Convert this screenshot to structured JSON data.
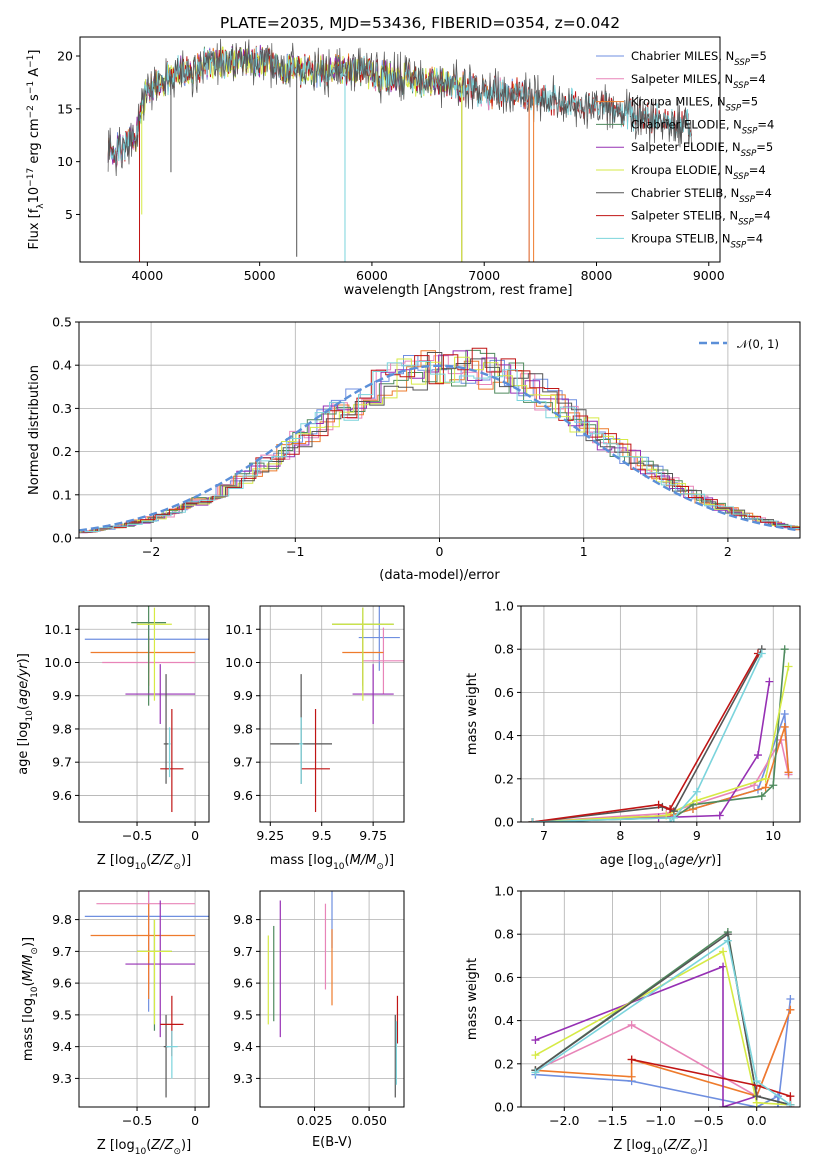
{
  "colors": [
    "#6f8fe0",
    "#e884b8",
    "#ee7b2c",
    "#4f8a5e",
    "#9630b4",
    "#d6ea45",
    "#555555",
    "#c01515",
    "#7bd4dc"
  ],
  "chart_data": [
    {
      "id": "spectrum",
      "type": "line",
      "title": "PLATE=2035, MJD=53436, FIBERID=0354, z=0.042",
      "xlabel": "wavelength [Angstrom, rest frame]",
      "ylabel": "Flux [f_λ10^-17 erg cm^-2 s^-1 A^-1]",
      "xlim": [
        3400,
        9100
      ],
      "ylim": [
        0.5,
        21.8
      ],
      "xticks": [
        4000,
        5000,
        6000,
        7000,
        8000,
        9000
      ],
      "yticks": [
        5,
        10,
        15,
        20
      ],
      "grid": false,
      "legend_position": "right",
      "series": [
        {
          "name": "Chabrier MILES, N_SSP=5",
          "xrange": [
            3650,
            7400
          ]
        },
        {
          "name": "Salpeter MILES, N_SSP=4",
          "xrange": [
            3650,
            7400
          ]
        },
        {
          "name": "Kroupa MILES, N_SSP=5",
          "xrange": [
            3650,
            7400
          ]
        },
        {
          "name": "Chabrier ELODIE, N_SSP=4",
          "xrange": [
            3650,
            6800
          ]
        },
        {
          "name": "Salpeter ELODIE, N_SSP=5",
          "xrange": [
            3650,
            6800
          ]
        },
        {
          "name": "Kroupa ELODIE, N_SSP=4",
          "xrange": [
            3900,
            6800
          ]
        },
        {
          "name": "Chabrier STELIB, N_SSP=4",
          "xrange": [
            3650,
            8850
          ]
        },
        {
          "name": "Salpeter STELIB, N_SSP=4",
          "xrange": [
            3650,
            8850
          ]
        },
        {
          "name": "Kroupa STELIB, N_SSP=4",
          "xrange": [
            3650,
            8850
          ]
        }
      ],
      "continuum": {
        "x": [
          3650,
          3700,
          3800,
          3900,
          4000,
          4100,
          4200,
          4300,
          4400,
          4500,
          4700,
          5000,
          5200,
          5500,
          5800,
          6000,
          6300,
          6500,
          6700,
          7000,
          7300,
          7500,
          7800,
          8000,
          8300,
          8500,
          8850
        ],
        "y": [
          11.5,
          11.0,
          11.5,
          12.5,
          17.0,
          17.5,
          18.0,
          18.8,
          18.5,
          19.3,
          19.5,
          19.5,
          18.8,
          18.5,
          18.8,
          18.2,
          17.8,
          17.5,
          17.5,
          16.5,
          16.5,
          16.0,
          15.5,
          15.3,
          14.5,
          14.0,
          13.5
        ]
      }
    },
    {
      "id": "residuals",
      "type": "step",
      "xlabel": "(data-model)/error",
      "ylabel": "Normed distribution",
      "xlim": [
        -2.5,
        2.5
      ],
      "ylim": [
        0,
        0.5
      ],
      "xticks": [
        -2,
        -1,
        0,
        1,
        2
      ],
      "yticks": [
        0,
        0.1,
        0.2,
        0.3,
        0.4,
        0.5
      ],
      "grid": true,
      "legend_position": "top-right",
      "reference": {
        "name": "𝒩(0, 1)",
        "mu": 0,
        "sigma": 1
      },
      "bin_width": 0.1
    },
    {
      "id": "age-vs-Z",
      "type": "errorbar",
      "xlabel": "Z [log10(Z/Z⊙)]",
      "ylabel": "age [log10(age/yr)]",
      "xlim": [
        -1.0,
        0.12
      ],
      "ylim": [
        9.52,
        10.17
      ],
      "xticks": [
        -0.5,
        0.0
      ],
      "yticks": [
        9.6,
        9.7,
        9.8,
        9.9,
        10.0,
        10.1
      ],
      "grid": true,
      "points": [
        {
          "x": -0.4,
          "xerr": [
            0.55,
            0.55
          ],
          "y": 10.07,
          "yerr": [
            0.1,
            0.05
          ]
        },
        {
          "x": -0.4,
          "xerr": [
            0.4,
            0.4
          ],
          "y": 10.0,
          "yerr": [
            0.1,
            0.05
          ]
        },
        {
          "x": -0.4,
          "xerr": [
            0.5,
            0.4
          ],
          "y": 10.03,
          "yerr": [
            0.1,
            0.05
          ]
        },
        {
          "x": -0.4,
          "xerr": [
            0.15,
            0.15
          ],
          "y": 10.12,
          "yerr": [
            0.25,
            0.05
          ]
        },
        {
          "x": -0.3,
          "xerr": [
            0.3,
            0.3
          ],
          "y": 9.905,
          "yerr": [
            0.09,
            0.09
          ]
        },
        {
          "x": -0.35,
          "xerr": [
            0.15,
            0.15
          ],
          "y": 10.115,
          "yerr": [
            0.23,
            0.05
          ]
        },
        {
          "x": -0.25,
          "xerr": [
            0.02,
            0.02
          ],
          "y": 9.755,
          "yerr": [
            0.12,
            0.21
          ]
        },
        {
          "x": -0.2,
          "xerr": [
            0.1,
            0.1
          ],
          "y": 9.68,
          "yerr": [
            0.13,
            0.18
          ]
        },
        {
          "x": -0.22,
          "xerr": [
            0.01,
            0.01
          ],
          "y": 9.755,
          "yerr": [
            0.1,
            0.05
          ]
        }
      ]
    },
    {
      "id": "age-vs-mass",
      "type": "errorbar",
      "xlabel": "mass [log10(M/M⊙)]",
      "ylabel": "",
      "xlim": [
        9.2,
        9.9
      ],
      "ylim": [
        9.52,
        10.17
      ],
      "xticks": [
        9.25,
        9.5,
        9.75
      ],
      "yticks": [
        9.6,
        9.7,
        9.8,
        9.9,
        10.0,
        10.1
      ],
      "grid": true,
      "points": [
        {
          "x": 9.78,
          "xerr": [
            0.1,
            0.1
          ],
          "y": 10.075,
          "yerr": [
            0.1,
            0.1
          ]
        },
        {
          "x": 9.8,
          "xerr": [
            0.1,
            0.1
          ],
          "y": 10.005,
          "yerr": [
            0.1,
            0.1
          ]
        },
        {
          "x": 9.7,
          "xerr": [
            0.1,
            0.1
          ],
          "y": 10.03,
          "yerr": [
            0.1,
            0.1
          ]
        },
        {
          "x": 9.7,
          "xerr": [
            0.15,
            0.15
          ],
          "y": 10.115,
          "yerr": [
            0.2,
            0.05
          ]
        },
        {
          "x": 9.75,
          "xerr": [
            0.1,
            0.1
          ],
          "y": 9.905,
          "yerr": [
            0.09,
            0.09
          ]
        },
        {
          "x": 9.7,
          "xerr": [
            0.15,
            0.15
          ],
          "y": 10.115,
          "yerr": [
            0.23,
            0.05
          ]
        },
        {
          "x": 9.4,
          "xerr": [
            0.15,
            0.15
          ],
          "y": 9.755,
          "yerr": [
            0.12,
            0.21
          ]
        },
        {
          "x": 9.47,
          "xerr": [
            0.07,
            0.07
          ],
          "y": 9.68,
          "yerr": [
            0.13,
            0.18
          ]
        },
        {
          "x": 9.4,
          "xerr": [
            0.01,
            0.01
          ],
          "y": 9.755,
          "yerr": [
            0.12,
            0.08
          ]
        }
      ]
    },
    {
      "id": "weight-vs-age",
      "type": "line",
      "xlabel": "age [log10(age/yr)]",
      "ylabel": "mass weight",
      "xlim": [
        6.7,
        10.35
      ],
      "ylim": [
        0,
        1.0
      ],
      "xticks": [
        7,
        8,
        9,
        10
      ],
      "yticks": [
        0,
        0.2,
        0.4,
        0.6,
        0.8,
        1.0
      ],
      "grid": true,
      "series": [
        {
          "x": [
            6.85,
            8.65,
            8.95,
            9.8,
            10.15,
            10.2
          ],
          "y": [
            0,
            0.03,
            0.06,
            0.15,
            0.5,
            0.22
          ]
        },
        {
          "x": [
            6.85,
            8.6,
            8.95,
            9.75,
            10.1,
            10.2
          ],
          "y": [
            0,
            0.04,
            0.08,
            0.17,
            0.38,
            0.22
          ]
        },
        {
          "x": [
            6.85,
            8.65,
            8.95,
            9.9,
            10.15,
            10.2
          ],
          "y": [
            0,
            0.03,
            0.06,
            0.16,
            0.44,
            0.23
          ]
        },
        {
          "x": [
            6.85,
            8.7,
            8.95,
            9.85,
            10.0,
            10.15
          ],
          "y": [
            0,
            0.02,
            0.08,
            0.12,
            0.17,
            0.8
          ]
        },
        {
          "x": [
            6.85,
            8.5,
            9.3,
            9.8,
            9.95
          ],
          "y": [
            0,
            0.02,
            0.03,
            0.31,
            0.65
          ]
        },
        {
          "x": [
            6.85,
            8.6,
            9.0,
            9.9,
            10.2
          ],
          "y": [
            0,
            0.03,
            0.1,
            0.2,
            0.72
          ]
        },
        {
          "x": [
            6.85,
            8.55,
            8.7,
            9.85
          ],
          "y": [
            0,
            0.07,
            0.05,
            0.8
          ]
        },
        {
          "x": [
            6.85,
            8.5,
            8.65,
            9.8
          ],
          "y": [
            0,
            0.08,
            0.06,
            0.78
          ]
        },
        {
          "x": [
            6.85,
            8.7,
            8.65,
            9.0,
            9.85
          ],
          "y": [
            0,
            0.02,
            0.0,
            0.14,
            0.78
          ]
        }
      ]
    },
    {
      "id": "mass-vs-Z",
      "type": "errorbar",
      "xlabel": "Z [log10(Z/Z⊙)]",
      "ylabel": "mass [log10(M/M⊙)]",
      "xlim": [
        -1.0,
        0.12
      ],
      "ylim": [
        9.21,
        9.89
      ],
      "xticks": [
        -0.5,
        0.0
      ],
      "yticks": [
        9.3,
        9.4,
        9.5,
        9.6,
        9.7,
        9.8
      ],
      "grid": true,
      "points": [
        {
          "x": -0.4,
          "xerr": [
            0.55,
            0.55
          ],
          "y": 9.81,
          "yerr": [
            0.3,
            0.1
          ]
        },
        {
          "x": -0.4,
          "xerr": [
            0.45,
            0.4
          ],
          "y": 9.85,
          "yerr": [
            0.27,
            0.1
          ]
        },
        {
          "x": -0.4,
          "xerr": [
            0.5,
            0.4
          ],
          "y": 9.75,
          "yerr": [
            0.2,
            0.1
          ]
        },
        {
          "x": -0.35,
          "xerr": [
            0.15,
            0.15
          ],
          "y": 9.7,
          "yerr": [
            0.25,
            0.1
          ]
        },
        {
          "x": -0.3,
          "xerr": [
            0.3,
            0.3
          ],
          "y": 9.66,
          "yerr": [
            0.23,
            0.2
          ]
        },
        {
          "x": -0.35,
          "xerr": [
            0.15,
            0.15
          ],
          "y": 9.7,
          "yerr": [
            0.23,
            0.1
          ]
        },
        {
          "x": -0.25,
          "xerr": [
            0.02,
            0.02
          ],
          "y": 9.4,
          "yerr": [
            0.16,
            0.1
          ]
        },
        {
          "x": -0.2,
          "xerr": [
            0.1,
            0.1
          ],
          "y": 9.47,
          "yerr": [
            0.1,
            0.09
          ]
        },
        {
          "x": -0.2,
          "xerr": [
            0.05,
            0.05
          ],
          "y": 9.4,
          "yerr": [
            0.1,
            0.05
          ]
        }
      ]
    },
    {
      "id": "mass-vs-ebv",
      "type": "errorbar",
      "xlabel": "E(B-V)",
      "ylabel": "",
      "xlim": [
        0.0,
        0.066
      ],
      "ylim": [
        9.21,
        9.89
      ],
      "xticks": [
        0.025,
        0.05
      ],
      "xticklabels": [
        "0.025",
        "0.050"
      ],
      "yticks": [
        9.3,
        9.4,
        9.5,
        9.6,
        9.7,
        9.8
      ],
      "grid": true,
      "points": [
        {
          "x": 0.033,
          "y": 9.81,
          "yerr": [
            0.1,
            0.1
          ]
        },
        {
          "x": 0.03,
          "y": 9.72,
          "yerr": [
            0.14,
            0.13
          ]
        },
        {
          "x": 0.033,
          "y": 9.65,
          "yerr": [
            0.12,
            0.12
          ]
        },
        {
          "x": 0.0063,
          "y": 9.7,
          "yerr": [
            0.22,
            0.08
          ]
        },
        {
          "x": 0.0093,
          "y": 9.66,
          "yerr": [
            0.23,
            0.2
          ]
        },
        {
          "x": 0.0038,
          "y": 9.6,
          "yerr": [
            0.13,
            0.15
          ]
        },
        {
          "x": 0.062,
          "y": 9.4,
          "yerr": [
            0.16,
            0.1
          ]
        },
        {
          "x": 0.063,
          "y": 9.48,
          "yerr": [
            0.07,
            0.08
          ]
        },
        {
          "x": 0.0625,
          "y": 9.38,
          "yerr": [
            0.1,
            0.1
          ]
        }
      ]
    },
    {
      "id": "weight-vs-Z",
      "type": "line",
      "xlabel": "Z [log10(Z/Z⊙)]",
      "ylabel": "mass weight",
      "xlim": [
        -2.45,
        0.45
      ],
      "ylim": [
        0,
        1.0
      ],
      "xticks": [
        -2.0,
        -1.5,
        -1.0,
        -0.5,
        0.0
      ],
      "xticklabels": [
        "−2.0",
        "−1.5",
        "−1.0",
        "−0.5",
        "0.0"
      ],
      "yticks": [
        0,
        0.2,
        0.4,
        0.6,
        0.8,
        1.0
      ],
      "grid": true,
      "series": [
        {
          "x": [
            -2.3,
            -1.3,
            0.0,
            0.22,
            0.22,
            0.35
          ],
          "y": [
            0.15,
            0.12,
            0.0,
            0.05,
            0.0,
            0.5
          ]
        },
        {
          "x": [
            -2.3,
            -1.3,
            0.0,
            0.35
          ],
          "y": [
            0.17,
            0.38,
            0.05,
            0.45
          ]
        },
        {
          "x": [
            -2.3,
            -1.3,
            -1.3,
            0.0,
            0.35
          ],
          "y": [
            0.17,
            0.14,
            0.22,
            0.05,
            0.45
          ]
        },
        {
          "x": [
            -2.3,
            -0.3,
            0.0,
            0.35
          ],
          "y": [
            0.17,
            0.81,
            0.05,
            0.01
          ]
        },
        {
          "x": [
            -2.3,
            -0.35,
            -0.35,
            0.0
          ],
          "y": [
            0.31,
            0.65,
            0.0,
            0.05
          ]
        },
        {
          "x": [
            -2.3,
            -0.35,
            0.0,
            0.35
          ],
          "y": [
            0.24,
            0.72,
            0.02,
            0.01
          ]
        },
        {
          "x": [
            -2.3,
            -0.3,
            0.0,
            0.35
          ],
          "y": [
            0.17,
            0.8,
            0.05,
            0.01
          ]
        },
        {
          "x": [
            -1.3,
            0.0,
            0.35,
            0.35
          ],
          "y": [
            0.22,
            0.1,
            0.05,
            0.0
          ]
        },
        {
          "x": [
            -2.3,
            -0.3,
            0.0,
            0.35
          ],
          "y": [
            0.16,
            0.77,
            0.12,
            0.01
          ]
        }
      ]
    }
  ]
}
